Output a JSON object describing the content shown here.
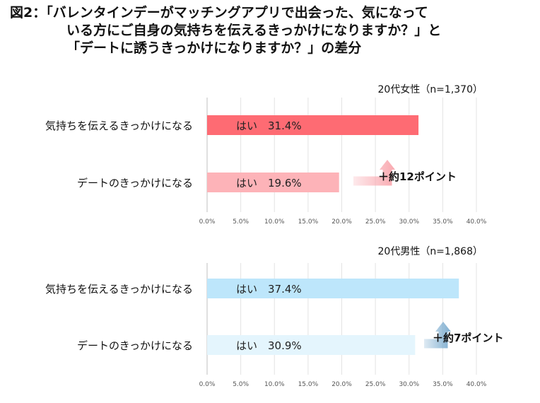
{
  "title": {
    "line1": "図2：「バレンタインデーがマッチングアプリで出会った、気になって",
    "line2": "いる方にご自身の気持ちを伝えるきっかけになりますか？」と",
    "line3": "「デートに誘うきっかけになりますか？」の差分"
  },
  "chart_data": [
    {
      "type": "bar",
      "orientation": "horizontal",
      "title": "20代女性（n=1,370）",
      "categories": [
        "気持ちを伝えるきっかけになる",
        "デートのきっかけになる"
      ],
      "values": [
        31.4,
        19.6
      ],
      "bar_labels": [
        "はい　31.4%",
        "はい　19.6%"
      ],
      "xlim": [
        0,
        40
      ],
      "xticks": [
        "0.0%",
        "5.0%",
        "10.0%",
        "15.0%",
        "20.0%",
        "25.0%",
        "30.0%",
        "35.0%",
        "40.0%"
      ],
      "bar_colors": [
        "#fe6b73",
        "#fdb3b8"
      ],
      "annotation": "＋約12ポイント",
      "arrow_color": "#f9a9b0"
    },
    {
      "type": "bar",
      "orientation": "horizontal",
      "title": "20代男性（n=1,868）",
      "categories": [
        "気持ちを伝えるきっかけになる",
        "デートのきっかけになる"
      ],
      "values": [
        37.4,
        30.9
      ],
      "bar_labels": [
        "はい　37.4%",
        "はい　30.9%"
      ],
      "xlim": [
        0,
        40
      ],
      "xticks": [
        "0.0%",
        "5.0%",
        "10.0%",
        "15.0%",
        "20.0%",
        "25.0%",
        "30.0%",
        "35.0%",
        "40.0%"
      ],
      "bar_colors": [
        "#bde6fb",
        "#e4f5fd"
      ],
      "annotation": "＋約7ポイント",
      "arrow_color": "#7faed0"
    }
  ]
}
